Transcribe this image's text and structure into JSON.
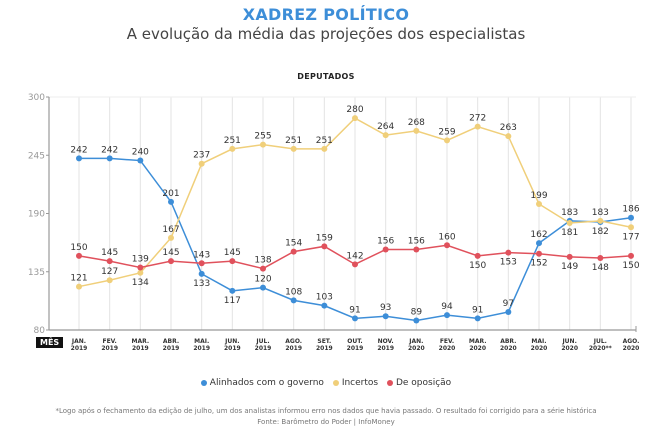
{
  "header": {
    "title": "XADREZ POLÍTICO",
    "subtitle": "A evolução da média das projeções dos especialistas",
    "section": "DEPUTADOS"
  },
  "x_axis_label": "MÊS",
  "footer": {
    "note": "*Logo após o fechamento da edição de julho, um dos analistas informou erro nos dados que havia passado. O resultado foi corrigido para a série histórica",
    "source": "Fonte: Barômetro do Poder | InfoMoney"
  },
  "chart_data": {
    "type": "line",
    "title": "DEPUTADOS",
    "xlabel": "MÊS",
    "ylabel": "",
    "ylim": [
      80,
      300
    ],
    "yticks": [
      80,
      135,
      190,
      245,
      300
    ],
    "grid": "vertical",
    "legend_position": "bottom",
    "categories": [
      [
        "JAN.",
        "2019"
      ],
      [
        "FEV.",
        "2019"
      ],
      [
        "MAR.",
        "2019"
      ],
      [
        "ABR.",
        "2019"
      ],
      [
        "MAI.",
        "2019"
      ],
      [
        "JUN.",
        "2019"
      ],
      [
        "JUL.",
        "2019"
      ],
      [
        "AGO.",
        "2019"
      ],
      [
        "SET.",
        "2019"
      ],
      [
        "OUT.",
        "2019"
      ],
      [
        "NOV.",
        "2019"
      ],
      [
        "JAN.",
        "2020"
      ],
      [
        "FEV.",
        "2020"
      ],
      [
        "MAR.",
        "2020"
      ],
      [
        "ABR.",
        "2020"
      ],
      [
        "MAI.",
        "2020"
      ],
      [
        "JUN.",
        "2020"
      ],
      [
        "JUL.",
        "2020**"
      ],
      [
        "AGO.",
        "2020"
      ]
    ],
    "series": [
      {
        "name": "Alinhados com o governo",
        "color": "#3d8ed8",
        "values": [
          242,
          242,
          240,
          201,
          133,
          117,
          120,
          108,
          103,
          91,
          93,
          89,
          94,
          91,
          97,
          162,
          183,
          182,
          186
        ],
        "label_pos": [
          "above",
          "above",
          "above",
          "above",
          "below",
          "below",
          "above",
          "above",
          "above",
          "above",
          "above",
          "above",
          "above",
          "above",
          "above",
          "above",
          "above",
          "below",
          "above"
        ]
      },
      {
        "name": "Incertos",
        "color": "#f0cf7a",
        "values": [
          121,
          127,
          134,
          167,
          237,
          251,
          255,
          251,
          251,
          280,
          264,
          268,
          259,
          272,
          263,
          199,
          181,
          183,
          177
        ],
        "label_pos": [
          "above",
          "above",
          "below",
          "above",
          "above",
          "above",
          "above",
          "above",
          "above",
          "above",
          "above",
          "above",
          "above",
          "above",
          "above",
          "above",
          "below",
          "above",
          "below"
        ]
      },
      {
        "name": "De oposição",
        "color": "#e0515c",
        "values": [
          150,
          145,
          139,
          145,
          143,
          145,
          138,
          154,
          159,
          142,
          156,
          156,
          160,
          150,
          153,
          152,
          149,
          148,
          150
        ],
        "label_pos": [
          "above",
          "above",
          "above",
          "above",
          "above",
          "above",
          "above",
          "above",
          "above",
          "above",
          "above",
          "above",
          "above",
          "below",
          "below",
          "below",
          "below",
          "below",
          "below"
        ]
      }
    ]
  }
}
